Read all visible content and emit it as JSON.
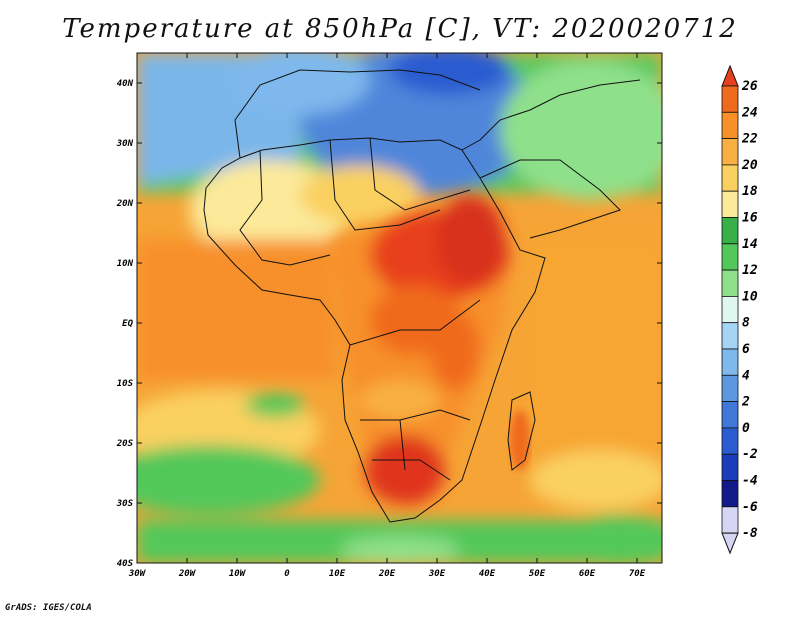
{
  "title": "Temperature at 850hPa [C], VT: 2020020712",
  "credit": "GrADS: IGES/COLA",
  "map": {
    "lat_labels": [
      "40N",
      "30N",
      "20N",
      "10N",
      "EQ",
      "10S",
      "20S",
      "30S",
      "40S"
    ],
    "lon_labels": [
      "30W",
      "20W",
      "10W",
      "0",
      "10E",
      "20E",
      "30E",
      "40E",
      "50E",
      "60E",
      "70E"
    ]
  },
  "colorbar": {
    "levels": [
      "26",
      "24",
      "22",
      "20",
      "18",
      "16",
      "14",
      "12",
      "10",
      "8",
      "6",
      "4",
      "2",
      "0",
      "-2",
      "-4",
      "-6",
      "-8"
    ],
    "colors": [
      "#e8401c",
      "#f06a1e",
      "#f7902a",
      "#f9b042",
      "#fad060",
      "#fce99a",
      "#38b048",
      "#52c85a",
      "#8fe08a",
      "#dff7f0",
      "#a6d4f4",
      "#7eb8ec",
      "#5c98e0",
      "#3f78d8",
      "#2a5cd0",
      "#1a3cb8",
      "#101a8a",
      "#d6d6f4"
    ]
  },
  "colors": {
    "ocean_tropical": "#f7a632",
    "sahara_cold": "#4f86da",
    "hot_core": "#e0351a"
  }
}
